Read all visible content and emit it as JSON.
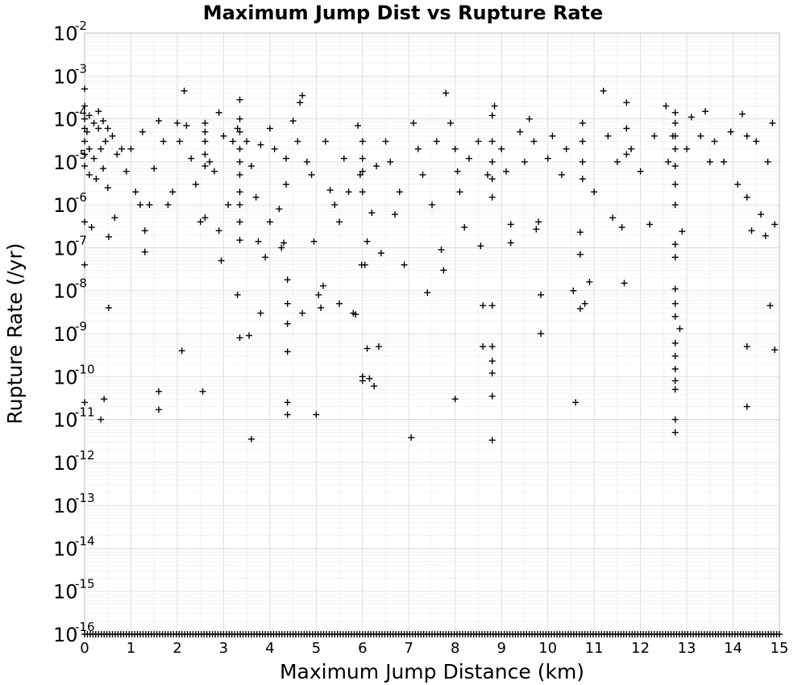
{
  "chart_data": {
    "type": "scatter",
    "title": "Maximum Jump Dist vs Rupture Rate",
    "xlabel": "Maximum Jump Distance (km)",
    "ylabel": "Rupture Rate (/yr)",
    "xlim": [
      0,
      15
    ],
    "ylim": [
      1e-16,
      0.01
    ],
    "yscale": "log",
    "grid": true,
    "marker": "plus",
    "marker_color": "#000000",
    "x_ticks": [
      "0",
      "1",
      "2",
      "3",
      "4",
      "5",
      "6",
      "7",
      "8",
      "9",
      "10",
      "11",
      "12",
      "13",
      "14",
      "15"
    ],
    "y_ticks": [
      {
        "base": "10",
        "exp": "-2"
      },
      {
        "base": "10",
        "exp": "-3"
      },
      {
        "base": "10",
        "exp": "-4"
      },
      {
        "base": "10",
        "exp": "-5"
      },
      {
        "base": "10",
        "exp": "-6"
      },
      {
        "base": "10",
        "exp": "-7"
      },
      {
        "base": "10",
        "exp": "-8"
      },
      {
        "base": "10",
        "exp": "-9"
      },
      {
        "base": "10",
        "exp": "-10"
      },
      {
        "base": "10",
        "exp": "-11"
      },
      {
        "base": "10",
        "exp": "-12"
      },
      {
        "base": "10",
        "exp": "-13"
      },
      {
        "base": "10",
        "exp": "-14"
      },
      {
        "base": "10",
        "exp": "-15"
      },
      {
        "base": "10",
        "exp": "-16"
      }
    ],
    "points": [
      [
        0.0,
        0.0005
      ],
      [
        0.0,
        0.0002
      ],
      [
        0.0,
        0.0001
      ],
      [
        0.0,
        6e-05
      ],
      [
        0.0,
        3e-05
      ],
      [
        0.0,
        1.5e-05
      ],
      [
        0.0,
        8e-06
      ],
      [
        0.0,
        4e-07
      ],
      [
        0.0,
        4e-08
      ],
      [
        0.0,
        2.5e-11
      ],
      [
        0.05,
        5e-05
      ],
      [
        0.1,
        0.00012
      ],
      [
        0.1,
        2e-05
      ],
      [
        0.1,
        5e-06
      ],
      [
        0.15,
        3e-07
      ],
      [
        0.2,
        8e-05
      ],
      [
        0.2,
        1.2e-05
      ],
      [
        0.25,
        4e-06
      ],
      [
        0.3,
        0.00015
      ],
      [
        0.3,
        6e-05
      ],
      [
        0.35,
        2e-05
      ],
      [
        0.4,
        9e-05
      ],
      [
        0.4,
        7e-06
      ],
      [
        0.45,
        3e-05
      ],
      [
        0.5,
        6e-05
      ],
      [
        0.5,
        2.5e-06
      ],
      [
        0.35,
        1e-11
      ],
      [
        0.42,
        3e-11
      ],
      [
        0.52,
        4e-09
      ],
      [
        0.52,
        1.8e-07
      ],
      [
        0.6,
        4e-05
      ],
      [
        0.65,
        5e-07
      ],
      [
        0.7,
        1.5e-05
      ],
      [
        0.8,
        2e-05
      ],
      [
        0.9,
        6e-06
      ],
      [
        1.0,
        2e-05
      ],
      [
        1.1,
        2e-06
      ],
      [
        1.2,
        1e-06
      ],
      [
        1.25,
        5e-05
      ],
      [
        1.3,
        2.5e-07
      ],
      [
        1.3,
        8e-08
      ],
      [
        1.4,
        1e-06
      ],
      [
        1.5,
        7e-06
      ],
      [
        1.6,
        9e-05
      ],
      [
        1.6,
        4.5e-11
      ],
      [
        1.6,
        1.7e-11
      ],
      [
        1.7,
        3e-05
      ],
      [
        1.8,
        1e-06
      ],
      [
        1.9,
        2e-06
      ],
      [
        2.0,
        8e-05
      ],
      [
        2.05,
        3e-05
      ],
      [
        2.1,
        4e-10
      ],
      [
        2.15,
        0.00045
      ],
      [
        2.2,
        7e-05
      ],
      [
        2.3,
        1.2e-05
      ],
      [
        2.4,
        3e-06
      ],
      [
        2.5,
        4e-07
      ],
      [
        2.55,
        4.5e-11
      ],
      [
        2.6,
        8e-05
      ],
      [
        2.6,
        5e-05
      ],
      [
        2.6,
        3e-05
      ],
      [
        2.6,
        1.5e-05
      ],
      [
        2.6,
        8e-06
      ],
      [
        2.6,
        5e-07
      ],
      [
        2.7,
        1e-05
      ],
      [
        2.8,
        6e-06
      ],
      [
        2.9,
        0.00014
      ],
      [
        2.9,
        2.5e-07
      ],
      [
        2.95,
        5e-08
      ],
      [
        3.0,
        4e-05
      ],
      [
        3.1,
        1e-06
      ],
      [
        3.2,
        3e-05
      ],
      [
        3.3,
        6e-05
      ],
      [
        3.35,
        0.00028
      ],
      [
        3.35,
        0.0001
      ],
      [
        3.35,
        5e-05
      ],
      [
        3.35,
        2e-05
      ],
      [
        3.35,
        1e-05
      ],
      [
        3.35,
        5e-06
      ],
      [
        3.35,
        2e-06
      ],
      [
        3.35,
        1e-06
      ],
      [
        3.35,
        4e-07
      ],
      [
        3.35,
        1.5e-07
      ],
      [
        3.3,
        8e-09
      ],
      [
        3.35,
        8e-10
      ],
      [
        3.5,
        3e-05
      ],
      [
        3.55,
        9e-10
      ],
      [
        3.6,
        3.5e-12
      ],
      [
        3.6,
        8e-06
      ],
      [
        3.7,
        1.5e-06
      ],
      [
        3.75,
        1.4e-07
      ],
      [
        3.8,
        2.5e-05
      ],
      [
        3.8,
        3e-09
      ],
      [
        3.9,
        6e-08
      ],
      [
        4.0,
        6e-05
      ],
      [
        4.0,
        4e-07
      ],
      [
        4.1,
        2e-05
      ],
      [
        4.2,
        8e-07
      ],
      [
        4.25,
        1e-07
      ],
      [
        4.3,
        1.3e-07
      ],
      [
        4.35,
        1.2e-05
      ],
      [
        4.35,
        3e-06
      ],
      [
        4.38,
        1.8e-08
      ],
      [
        4.38,
        5e-09
      ],
      [
        4.38,
        1.7e-09
      ],
      [
        4.38,
        3.8e-10
      ],
      [
        4.38,
        2.5e-11
      ],
      [
        4.38,
        1.3e-11
      ],
      [
        4.5,
        9e-05
      ],
      [
        4.6,
        3e-05
      ],
      [
        4.65,
        0.00024
      ],
      [
        4.7,
        0.00035
      ],
      [
        4.7,
        3e-09
      ],
      [
        4.8,
        1e-05
      ],
      [
        4.9,
        5e-06
      ],
      [
        4.95,
        1.4e-07
      ],
      [
        5.0,
        1.3e-11
      ],
      [
        5.05,
        8e-09
      ],
      [
        5.1,
        4e-09
      ],
      [
        5.15,
        1.3e-08
      ],
      [
        5.2,
        3e-05
      ],
      [
        5.3,
        2.2e-06
      ],
      [
        5.4,
        1e-06
      ],
      [
        5.5,
        5e-09
      ],
      [
        5.5,
        4e-07
      ],
      [
        5.6,
        1.2e-05
      ],
      [
        5.7,
        2e-06
      ],
      [
        5.8,
        3e-09
      ],
      [
        5.85,
        2.8e-09
      ],
      [
        5.9,
        7e-05
      ],
      [
        5.95,
        5e-06
      ],
      [
        5.98,
        4e-08
      ],
      [
        6.0,
        3e-05
      ],
      [
        6.0,
        1.2e-05
      ],
      [
        6.0,
        6e-06
      ],
      [
        6.0,
        2e-06
      ],
      [
        6.0,
        1e-10
      ],
      [
        6.0,
        8e-11
      ],
      [
        6.05,
        4e-08
      ],
      [
        6.1,
        4.5e-10
      ],
      [
        6.1,
        1.4e-07
      ],
      [
        6.15,
        9e-11
      ],
      [
        6.2,
        6.5e-07
      ],
      [
        6.25,
        6e-11
      ],
      [
        6.3,
        8e-06
      ],
      [
        6.35,
        5e-10
      ],
      [
        6.4,
        7.5e-08
      ],
      [
        6.5,
        3e-05
      ],
      [
        6.6,
        1e-05
      ],
      [
        6.7,
        6e-07
      ],
      [
        6.8,
        2e-06
      ],
      [
        6.9,
        4e-08
      ],
      [
        7.05,
        3.8e-12
      ],
      [
        7.1,
        8e-05
      ],
      [
        7.2,
        2e-05
      ],
      [
        7.3,
        5e-06
      ],
      [
        7.4,
        9e-09
      ],
      [
        7.5,
        1e-06
      ],
      [
        7.6,
        3e-05
      ],
      [
        7.7,
        9e-08
      ],
      [
        7.75,
        3e-08
      ],
      [
        7.8,
        0.0004
      ],
      [
        7.9,
        8e-05
      ],
      [
        8.0,
        2e-05
      ],
      [
        8.0,
        3e-11
      ],
      [
        8.05,
        6e-06
      ],
      [
        8.1,
        2e-06
      ],
      [
        8.2,
        3e-07
      ],
      [
        8.3,
        1.2e-05
      ],
      [
        8.5,
        3e-05
      ],
      [
        8.55,
        1.1e-07
      ],
      [
        8.6,
        4.5e-09
      ],
      [
        8.6,
        5e-10
      ],
      [
        8.7,
        5e-06
      ],
      [
        8.8,
        0.00012
      ],
      [
        8.8,
        3e-05
      ],
      [
        8.8,
        1e-05
      ],
      [
        8.8,
        4e-06
      ],
      [
        8.8,
        1.5e-06
      ],
      [
        8.8,
        4.5e-09
      ],
      [
        8.8,
        5e-10
      ],
      [
        8.8,
        2.3e-10
      ],
      [
        8.8,
        1.2e-10
      ],
      [
        8.8,
        3.5e-11
      ],
      [
        8.8,
        3.3e-12
      ],
      [
        8.85,
        0.0002
      ],
      [
        9.0,
        2e-05
      ],
      [
        9.1,
        6e-06
      ],
      [
        9.2,
        3.5e-07
      ],
      [
        9.2,
        1.3e-07
      ],
      [
        9.4,
        5e-05
      ],
      [
        9.5,
        1e-05
      ],
      [
        9.6,
        0.0001
      ],
      [
        9.7,
        3e-05
      ],
      [
        9.75,
        2.7e-07
      ],
      [
        9.8,
        4e-07
      ],
      [
        9.85,
        8e-09
      ],
      [
        9.85,
        1e-09
      ],
      [
        10.0,
        1.2e-05
      ],
      [
        10.1,
        4e-05
      ],
      [
        10.3,
        5e-06
      ],
      [
        10.4,
        2e-05
      ],
      [
        10.55,
        1e-08
      ],
      [
        10.6,
        2.5e-11
      ],
      [
        10.7,
        7e-08
      ],
      [
        10.7,
        2.3e-07
      ],
      [
        10.7,
        3.8e-09
      ],
      [
        10.75,
        8e-05
      ],
      [
        10.75,
        3e-05
      ],
      [
        10.75,
        1e-05
      ],
      [
        10.75,
        4e-06
      ],
      [
        10.8,
        5e-09
      ],
      [
        10.9,
        1.6e-08
      ],
      [
        11.0,
        2e-06
      ],
      [
        11.2,
        0.00045
      ],
      [
        11.3,
        4e-05
      ],
      [
        11.4,
        5e-07
      ],
      [
        11.5,
        1e-05
      ],
      [
        11.6,
        3e-07
      ],
      [
        11.65,
        1.5e-08
      ],
      [
        11.7,
        0.00024
      ],
      [
        11.7,
        6e-05
      ],
      [
        11.7,
        1.5e-05
      ],
      [
        11.8,
        2e-05
      ],
      [
        12.0,
        6e-06
      ],
      [
        12.2,
        3.5e-07
      ],
      [
        12.3,
        4e-05
      ],
      [
        12.55,
        0.0002
      ],
      [
        12.6,
        1e-05
      ],
      [
        12.7,
        4e-05
      ],
      [
        12.75,
        0.00014
      ],
      [
        12.75,
        8e-05
      ],
      [
        12.75,
        4e-05
      ],
      [
        12.75,
        2e-05
      ],
      [
        12.75,
        8e-06
      ],
      [
        12.75,
        3e-06
      ],
      [
        12.75,
        1e-06
      ],
      [
        12.75,
        1.2e-07
      ],
      [
        12.75,
        6e-08
      ],
      [
        12.75,
        1.1e-08
      ],
      [
        12.75,
        5e-09
      ],
      [
        12.75,
        2.5e-09
      ],
      [
        12.75,
        6e-10
      ],
      [
        12.75,
        3e-10
      ],
      [
        12.75,
        1.5e-10
      ],
      [
        12.75,
        8e-11
      ],
      [
        12.75,
        5e-11
      ],
      [
        12.75,
        1e-11
      ],
      [
        12.75,
        5e-12
      ],
      [
        12.85,
        1.3e-09
      ],
      [
        12.9,
        2.4e-07
      ],
      [
        13.0,
        2e-05
      ],
      [
        13.1,
        0.00011
      ],
      [
        13.3,
        4e-05
      ],
      [
        13.4,
        0.00015
      ],
      [
        13.5,
        1e-05
      ],
      [
        13.6,
        3e-05
      ],
      [
        13.8,
        1e-05
      ],
      [
        13.95,
        5e-05
      ],
      [
        14.1,
        3e-06
      ],
      [
        14.2,
        0.00013
      ],
      [
        14.3,
        4e-05
      ],
      [
        14.3,
        1.5e-06
      ],
      [
        14.3,
        5e-10
      ],
      [
        14.3,
        2e-11
      ],
      [
        14.4,
        2.5e-07
      ],
      [
        14.5,
        3e-05
      ],
      [
        14.6,
        6e-07
      ],
      [
        14.7,
        1.9e-07
      ],
      [
        14.75,
        1e-05
      ],
      [
        14.8,
        4.5e-09
      ],
      [
        14.85,
        8e-05
      ],
      [
        14.9,
        3.5e-07
      ],
      [
        14.9,
        4.2e-10
      ]
    ],
    "floor_value": 1e-16,
    "floor_x_range": [
      0,
      15
    ]
  }
}
